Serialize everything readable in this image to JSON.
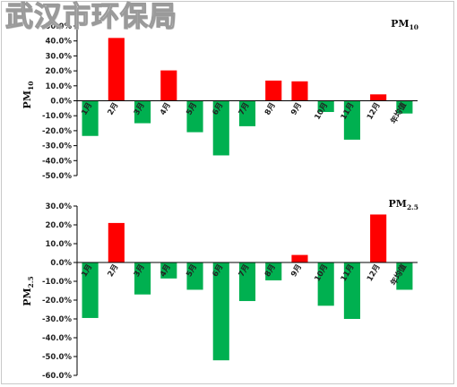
{
  "watermark": "武汉市环保局",
  "chart_data": [
    {
      "type": "bar",
      "title_main": "PM",
      "title_sub": "10",
      "ylabel_main": "PM",
      "ylabel_sub": "10",
      "categories": [
        "1月",
        "2月",
        "3月",
        "4月",
        "5月",
        "6月",
        "7月",
        "8月",
        "9月",
        "10月",
        "11月",
        "12月",
        "年均值"
      ],
      "values": [
        -23.5,
        42.0,
        -15.0,
        20.3,
        -21.0,
        -36.5,
        -17.0,
        13.5,
        13.0,
        -7.5,
        -26.0,
        4.3,
        -8.5
      ],
      "ylim": [
        -50,
        50
      ],
      "ticks": [
        "50.0%",
        "40.0%",
        "30.0%",
        "20.0%",
        "10.0%",
        "0.0%",
        "-10.0%",
        "-20.0%",
        "-30.0%",
        "-40.0%",
        "-50.0%"
      ],
      "positive_color": "#ff0000",
      "negative_color": "#00b050",
      "grid": false
    },
    {
      "type": "bar",
      "title_main": "PM",
      "title_sub": "2.5",
      "ylabel_main": "PM",
      "ylabel_sub": "2.5",
      "categories": [
        "1月",
        "2月",
        "3月",
        "4月",
        "5月",
        "6月",
        "7月",
        "8月",
        "9月",
        "10月",
        "11月",
        "12月",
        "年均值"
      ],
      "values": [
        -29.5,
        21.0,
        -17.0,
        -8.5,
        -14.5,
        -52.0,
        -20.5,
        -9.5,
        4.0,
        -23.0,
        -30.0,
        25.5,
        -14.5
      ],
      "ylim": [
        -60,
        30
      ],
      "ticks": [
        "30.0%",
        "20.0%",
        "10.0%",
        "0.0%",
        "-10.0%",
        "-20.0%",
        "-30.0%",
        "-40.0%",
        "-50.0%",
        "-60.0%"
      ],
      "positive_color": "#ff0000",
      "negative_color": "#00b050",
      "grid": false
    }
  ]
}
